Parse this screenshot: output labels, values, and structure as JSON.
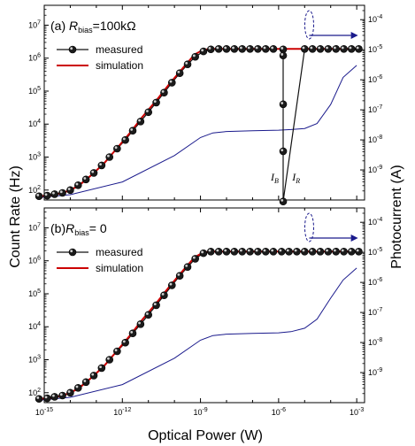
{
  "figure": {
    "xlabel": "Optical Power (W)",
    "ylabel_left": "Count Rate (Hz)",
    "ylabel_right": "Photocurrent (A)"
  },
  "colors": {
    "measured": "#111111",
    "simulation": "#cc0000",
    "photocurrent": "#1a1a8c",
    "axis": "#000000"
  },
  "chart_data": [
    {
      "type": "line",
      "panel": "a",
      "title_prefix": "(a) ",
      "title_var": "R",
      "title_sub": "bias",
      "title_suffix": "=100kΩ",
      "x_scale": "log",
      "xlim": [
        1e-15,
        0.002
      ],
      "x_ticks": [
        "10^-15",
        "10^-12",
        "10^-9",
        "10^-6",
        "10^-3"
      ],
      "y_scale": "log",
      "ylim": [
        50,
        40000000
      ],
      "y_ticks": [
        "10^2",
        "10^3",
        "10^4",
        "10^5",
        "10^6",
        "10^7"
      ],
      "y2_scale": "log",
      "y2lim": [
        1e-10,
        0.0003
      ],
      "y2_ticks": [
        "10^-9",
        "10^-8",
        "10^-7",
        "10^-6",
        "10^-5",
        "10^-4"
      ],
      "legend": [
        "measured",
        "simulation"
      ],
      "legend_position": "top-left",
      "annotations": [
        {
          "var": "I",
          "sub": "B",
          "x": 1.5e-06
        },
        {
          "var": "I",
          "sub": "R",
          "x": 1e-05
        }
      ],
      "series": [
        {
          "name": "measured",
          "x": [
            6.3e-16,
            1.3e-15,
            2.5e-15,
            5e-15,
            1e-14,
            2e-14,
            4e-14,
            8e-14,
            1.6e-13,
            3.2e-13,
            6.3e-13,
            1.3e-12,
            2.5e-12,
            5e-12,
            1e-11,
            2e-11,
            4e-11,
            8e-11,
            1.6e-10,
            3.2e-10,
            6.3e-10,
            1.3e-09,
            2.5e-09,
            5e-09,
            1e-08,
            2e-08,
            4e-08,
            8e-08,
            1.6e-07,
            3.2e-07,
            6.3e-07,
            1.5e-06,
            1.5e-06,
            1.5e-06,
            1.5e-06,
            1.5e-06,
            1e-05,
            2e-05,
            4e-05,
            8e-05,
            0.00016,
            0.00032,
            0.00063,
            0.0012
          ],
          "y": [
            65,
            68,
            75,
            82,
            100,
            140,
            210,
            330,
            560,
            1000,
            1800,
            3300,
            6300,
            12000,
            23000,
            45000,
            90000,
            180000,
            350000,
            650000,
            1100000,
            1600000,
            1850000,
            1900000,
            1900000,
            1900000,
            1900000,
            1900000,
            1900000,
            1900000,
            1900000,
            1850000,
            1200000,
            40000,
            1500,
            45,
            1900000,
            1900000,
            1900000,
            1900000,
            1900000,
            1900000,
            1900000,
            1900000
          ]
        },
        {
          "name": "simulation",
          "x": [
            6.3e-16,
            2e-15,
            6e-15,
            2e-14,
            6e-14,
            2e-13,
            6e-13,
            2e-12,
            6e-12,
            2e-11,
            6e-11,
            2e-10,
            6e-10,
            1.3e-09,
            2.5e-09,
            5e-09,
            1e-08,
            1e-07,
            1e-06,
            1e-05,
            0.0001,
            0.0012
          ],
          "y": [
            65,
            70,
            85,
            130,
            270,
            650,
            1800,
            5500,
            17000,
            52000,
            155000,
            480000,
            1300000,
            1800000,
            1900000,
            1900000,
            1900000,
            1900000,
            1900000,
            1900000,
            1900000,
            1900000
          ]
        },
        {
          "name": "photocurrent",
          "axis": "right",
          "x": [
            6.3e-16,
            1e-14,
            1e-12,
            1e-10,
            1e-09,
            3e-09,
            1e-08,
            1e-07,
            1e-06,
            3e-06,
            1e-05,
            3e-05,
            0.0001,
            0.0003,
            0.001
          ],
          "y": [
            1.2e-10,
            1.5e-10,
            4e-10,
            3e-09,
            1.2e-08,
            1.7e-08,
            1.9e-08,
            2e-08,
            2.1e-08,
            2.2e-08,
            2.4e-08,
            3.5e-08,
            1.5e-07,
            1.2e-06,
            3e-06
          ]
        }
      ]
    },
    {
      "type": "line",
      "panel": "b",
      "title_prefix": "(b)",
      "title_var": "R",
      "title_sub": "bias",
      "title_suffix": "= 0",
      "x_scale": "log",
      "xlim": [
        1e-15,
        0.002
      ],
      "x_ticks": [
        "10^-15",
        "10^-12",
        "10^-9",
        "10^-6",
        "10^-3"
      ],
      "y_scale": "log",
      "ylim": [
        50,
        40000000
      ],
      "y_ticks": [
        "10^2",
        "10^3",
        "10^4",
        "10^5",
        "10^6",
        "10^7"
      ],
      "y2_scale": "log",
      "y2lim": [
        1e-10,
        0.0003
      ],
      "y2_ticks": [
        "10^-9",
        "10^-8",
        "10^-7",
        "10^-6",
        "10^-5",
        "10^-4"
      ],
      "legend": [
        "measured",
        "simulation"
      ],
      "legend_position": "top-left",
      "series": [
        {
          "name": "measured",
          "x": [
            6.3e-16,
            1.3e-15,
            2.5e-15,
            5e-15,
            1e-14,
            2e-14,
            4e-14,
            8e-14,
            1.6e-13,
            3.2e-13,
            6.3e-13,
            1.3e-12,
            2.5e-12,
            5e-12,
            1e-11,
            2e-11,
            4e-11,
            8e-11,
            1.6e-10,
            3.2e-10,
            6.3e-10,
            1.3e-09,
            2.5e-09,
            5e-09,
            1e-08,
            2e-08,
            4e-08,
            8e-08,
            1.6e-07,
            3.2e-07,
            6.3e-07,
            1.3e-06,
            2.5e-06,
            5e-06,
            1e-05,
            2e-05,
            4e-05,
            8e-05,
            0.00016,
            0.00032,
            0.00063,
            0.0012
          ],
          "y": [
            65,
            68,
            75,
            82,
            100,
            140,
            210,
            330,
            560,
            1000,
            1800,
            3300,
            6300,
            12000,
            23000,
            45000,
            90000,
            180000,
            350000,
            650000,
            1150000,
            1700000,
            1900000,
            1900000,
            1900000,
            1900000,
            1900000,
            1900000,
            1900000,
            1900000,
            1900000,
            1900000,
            1900000,
            1900000,
            1900000,
            1900000,
            1900000,
            1900000,
            1900000,
            1900000,
            1900000,
            1900000
          ]
        },
        {
          "name": "simulation",
          "x": [
            6.3e-16,
            2e-15,
            6e-15,
            2e-14,
            6e-14,
            2e-13,
            6e-13,
            2e-12,
            6e-12,
            2e-11,
            6e-11,
            2e-10,
            6e-10,
            1.3e-09,
            2.5e-09,
            5e-09,
            1e-08,
            1e-07,
            1e-06,
            1e-05,
            0.0001,
            0.0012
          ],
          "y": [
            65,
            70,
            85,
            130,
            270,
            650,
            1800,
            5500,
            17000,
            52000,
            155000,
            480000,
            1300000,
            1800000,
            1900000,
            1900000,
            1900000,
            1900000,
            1900000,
            1900000,
            1900000,
            1900000
          ]
        },
        {
          "name": "photocurrent",
          "axis": "right",
          "x": [
            6.3e-16,
            1e-14,
            1e-12,
            1e-10,
            1e-09,
            3e-09,
            1e-08,
            1e-07,
            1e-06,
            3e-06,
            1e-05,
            3e-05,
            0.0001,
            0.0003,
            0.001
          ],
          "y": [
            1.2e-10,
            1.5e-10,
            4e-10,
            3e-09,
            1.2e-08,
            1.7e-08,
            1.9e-08,
            2e-08,
            2.1e-08,
            2.3e-08,
            3e-08,
            6e-08,
            3e-07,
            1.2e-06,
            3e-06
          ]
        }
      ]
    }
  ]
}
